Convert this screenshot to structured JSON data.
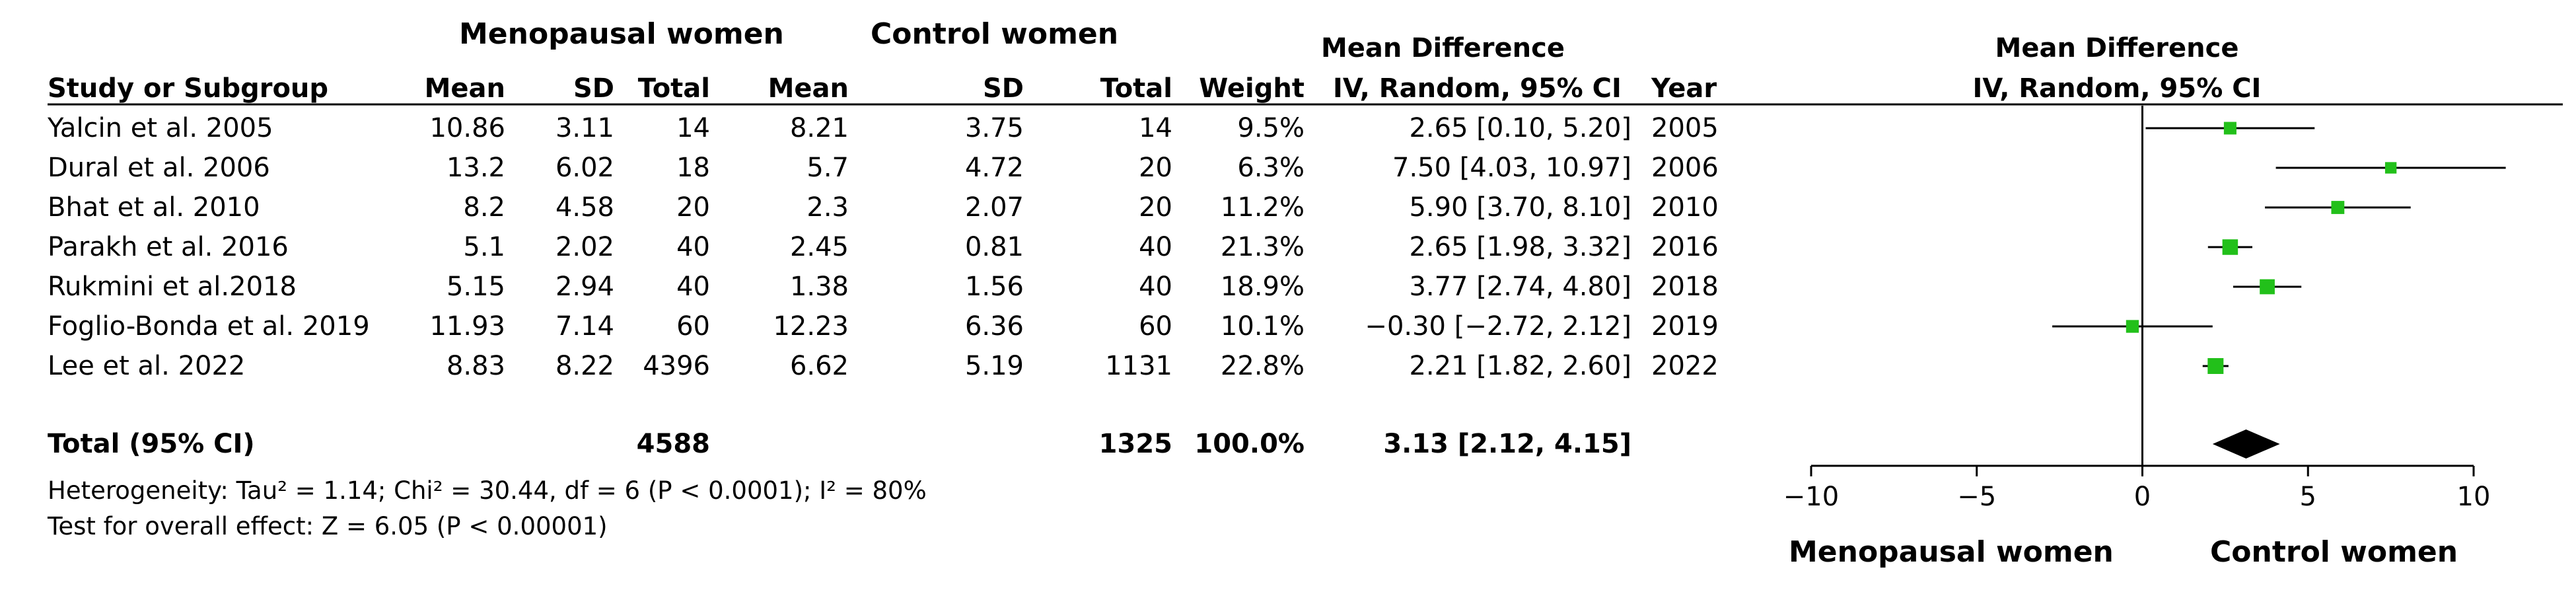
{
  "headers": {
    "group1": "Menopausal women",
    "group2": "Control women",
    "md_title": "Mean Difference",
    "md_method": "IV, Random, 95% CI",
    "study": "Study or Subgroup",
    "mean": "Mean",
    "sd": "SD",
    "total": "Total",
    "weight": "Weight",
    "year": "Year"
  },
  "studies": [
    {
      "name": "Yalcin et al. 2005",
      "m1": "10.86",
      "sd1": "3.11",
      "n1": "14",
      "m2": "8.21",
      "sd2": "3.75",
      "n2": "14",
      "weight": "9.5%",
      "ci": "2.65 [0.10, 5.20]",
      "year": "2005"
    },
    {
      "name": "Dural et al. 2006",
      "m1": "13.2",
      "sd1": "6.02",
      "n1": "18",
      "m2": "5.7",
      "sd2": "4.72",
      "n2": "20",
      "weight": "6.3%",
      "ci": "7.50 [4.03, 10.97]",
      "year": "2006"
    },
    {
      "name": "Bhat et al. 2010",
      "m1": "8.2",
      "sd1": "4.58",
      "n1": "20",
      "m2": "2.3",
      "sd2": "2.07",
      "n2": "20",
      "weight": "11.2%",
      "ci": "5.90 [3.70, 8.10]",
      "year": "2010"
    },
    {
      "name": "Parakh et al. 2016",
      "m1": "5.1",
      "sd1": "2.02",
      "n1": "40",
      "m2": "2.45",
      "sd2": "0.81",
      "n2": "40",
      "weight": "21.3%",
      "ci": "2.65 [1.98, 3.32]",
      "year": "2016"
    },
    {
      "name": "Rukmini et al.2018",
      "m1": "5.15",
      "sd1": "2.94",
      "n1": "40",
      "m2": "1.38",
      "sd2": "1.56",
      "n2": "40",
      "weight": "18.9%",
      "ci": "3.77 [2.74, 4.80]",
      "year": "2018"
    },
    {
      "name": "Foglio-Bonda et al. 2019",
      "m1": "11.93",
      "sd1": "7.14",
      "n1": "60",
      "m2": "12.23",
      "sd2": "6.36",
      "n2": "60",
      "weight": "10.1%",
      "ci": "−0.30 [−2.72, 2.12]",
      "year": "2019"
    },
    {
      "name": "Lee et al. 2022",
      "m1": "8.83",
      "sd1": "8.22",
      "n1": "4396",
      "m2": "6.62",
      "sd2": "5.19",
      "n2": "1131",
      "weight": "22.8%",
      "ci": "2.21 [1.82, 2.60]",
      "year": "2022"
    }
  ],
  "total": {
    "label": "Total (95% CI)",
    "n1": "4588",
    "n2": "1325",
    "weight": "100.0%",
    "ci": "3.13 [2.12, 4.15]"
  },
  "heterogeneity": "Heterogeneity: Tau² = 1.14; Chi² = 30.44, df = 6 (P < 0.0001); I² = 80%",
  "overall_effect": "Test for overall effect: Z = 6.05 (P < 0.00001)",
  "colors": {
    "marker": "#22c01a",
    "line": "#000000",
    "diamond": "#000000"
  },
  "chart_data": {
    "type": "forest",
    "title": "Mean Difference",
    "subtitle": "IV, Random, 95% CI",
    "xlim": [
      -10,
      10
    ],
    "xticks": [
      -10,
      -5,
      0,
      5,
      10
    ],
    "xtick_labels": [
      "−10",
      "−5",
      "0",
      "5",
      "10"
    ],
    "left_label": "Menopausal women",
    "right_label": "Control women",
    "studies": [
      {
        "name": "Yalcin et al. 2005",
        "md": 2.65,
        "lo": 0.1,
        "hi": 5.2,
        "weight": 9.5
      },
      {
        "name": "Dural et al. 2006",
        "md": 7.5,
        "lo": 4.03,
        "hi": 10.97,
        "weight": 6.3
      },
      {
        "name": "Bhat et al. 2010",
        "md": 5.9,
        "lo": 3.7,
        "hi": 8.1,
        "weight": 11.2
      },
      {
        "name": "Parakh et al. 2016",
        "md": 2.65,
        "lo": 1.98,
        "hi": 3.32,
        "weight": 21.3
      },
      {
        "name": "Rukmini et al.2018",
        "md": 3.77,
        "lo": 2.74,
        "hi": 4.8,
        "weight": 18.9
      },
      {
        "name": "Foglio-Bonda et al. 2019",
        "md": -0.3,
        "lo": -2.72,
        "hi": 2.12,
        "weight": 10.1
      },
      {
        "name": "Lee et al. 2022",
        "md": 2.21,
        "lo": 1.82,
        "hi": 2.6,
        "weight": 22.8
      }
    ],
    "pooled": {
      "md": 3.13,
      "lo": 2.12,
      "hi": 4.15
    }
  }
}
